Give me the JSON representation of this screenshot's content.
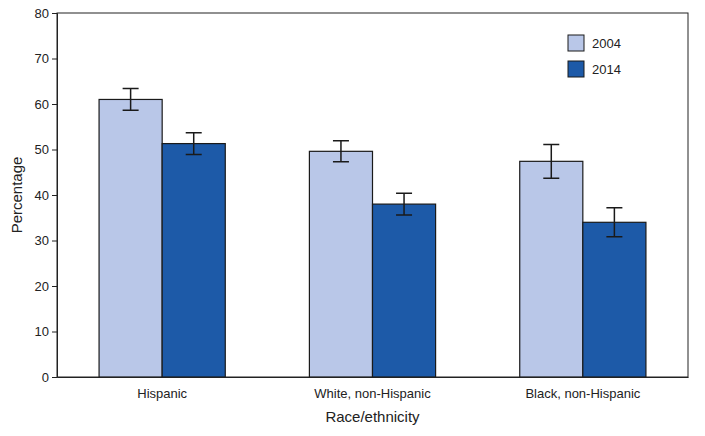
{
  "chart_data": {
    "type": "bar",
    "x_label": "Race/ethnicity",
    "y_label": "Percentage",
    "categories": [
      "Hispanic",
      "White, non-Hispanic",
      "Black, non-Hispanic"
    ],
    "series": [
      {
        "name": "2004",
        "color": "#b9c7e8",
        "values": [
          61.0,
          49.6,
          47.4
        ],
        "errors": [
          2.4,
          2.3,
          3.7
        ]
      },
      {
        "name": "2014",
        "color": "#1d5aa8",
        "values": [
          51.3,
          38.0,
          34.0
        ],
        "errors": [
          2.4,
          2.4,
          3.2
        ]
      }
    ],
    "ylim": [
      0,
      80
    ],
    "yticks": [
      0,
      10,
      20,
      30,
      40,
      50,
      60,
      70,
      80
    ],
    "legend": "top-right",
    "grid": false
  }
}
